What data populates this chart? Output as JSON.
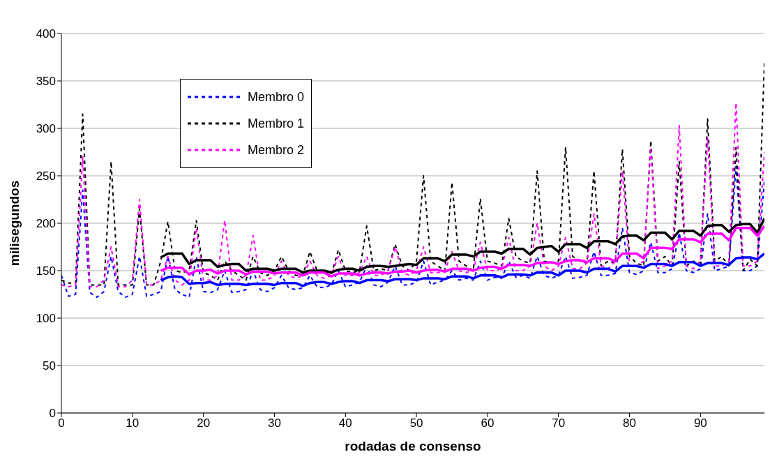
{
  "chart_data": {
    "type": "line",
    "xlabel": "rodadas de consenso",
    "ylabel": "milisegundos",
    "x": [
      0,
      1,
      2,
      3,
      4,
      5,
      6,
      7,
      8,
      9,
      10,
      11,
      12,
      13,
      14,
      15,
      16,
      17,
      18,
      19,
      20,
      21,
      22,
      23,
      24,
      25,
      26,
      27,
      28,
      29,
      30,
      31,
      32,
      33,
      34,
      35,
      36,
      37,
      38,
      39,
      40,
      41,
      42,
      43,
      44,
      45,
      46,
      47,
      48,
      49,
      50,
      51,
      52,
      53,
      54,
      55,
      56,
      57,
      58,
      59,
      60,
      61,
      62,
      63,
      64,
      65,
      66,
      67,
      68,
      69,
      70,
      71,
      72,
      73,
      74,
      75,
      76,
      77,
      78,
      79,
      80,
      81,
      82,
      83,
      84,
      85,
      86,
      87,
      88,
      89,
      90,
      91,
      92,
      93,
      94,
      95,
      96,
      97,
      98,
      99
    ],
    "xlim": [
      0,
      99
    ],
    "xticks": [
      0,
      10,
      20,
      30,
      40,
      50,
      60,
      70,
      80,
      90
    ],
    "ylim": [
      0,
      400
    ],
    "yticks": [
      0,
      50,
      100,
      150,
      200,
      250,
      300,
      350,
      400
    ],
    "grid": "y",
    "legend": "top left",
    "series": [
      {
        "name": "Membro 0",
        "color": "#0000ff",
        "line_style": "dashed",
        "values": [
          145,
          123,
          125,
          235,
          127,
          122,
          128,
          165,
          128,
          122,
          125,
          165,
          123,
          125,
          128,
          165,
          130,
          125,
          122,
          165,
          128,
          127,
          130,
          150,
          127,
          128,
          130,
          150,
          130,
          128,
          132,
          145,
          132,
          130,
          132,
          145,
          133,
          132,
          135,
          150,
          133,
          135,
          138,
          155,
          135,
          133,
          138,
          155,
          135,
          135,
          138,
          160,
          135,
          138,
          140,
          150,
          140,
          142,
          140,
          160,
          140,
          143,
          142,
          160,
          143,
          145,
          142,
          165,
          145,
          142,
          145,
          165,
          142,
          143,
          145,
          170,
          145,
          145,
          147,
          195,
          148,
          146,
          150,
          180,
          148,
          148,
          152,
          190,
          150,
          148,
          152,
          210,
          150,
          152,
          155,
          260,
          150,
          150,
          155,
          245
        ]
      },
      {
        "name": "Membro 1",
        "color": "#000000",
        "line_style": "dashed",
        "values": [
          140,
          137,
          137,
          315,
          135,
          135,
          135,
          265,
          135,
          135,
          135,
          215,
          135,
          135,
          160,
          202,
          150,
          148,
          150,
          203,
          148,
          145,
          140,
          160,
          150,
          145,
          140,
          165,
          148,
          145,
          150,
          165,
          150,
          145,
          145,
          170,
          150,
          148,
          145,
          172,
          150,
          148,
          150,
          197,
          150,
          152,
          150,
          178,
          155,
          150,
          160,
          250,
          160,
          155,
          150,
          243,
          160,
          155,
          150,
          226,
          160,
          158,
          155,
          205,
          165,
          160,
          158,
          255,
          160,
          158,
          160,
          280,
          165,
          160,
          158,
          255,
          155,
          160,
          158,
          278,
          165,
          158,
          155,
          287,
          160,
          165,
          155,
          265,
          155,
          160,
          158,
          310,
          160,
          165,
          155,
          280,
          150,
          162,
          155,
          370
        ]
      },
      {
        "name": "Membro 2",
        "color": "#ff00ff",
        "line_style": "dashed",
        "values": [
          135,
          133,
          135,
          270,
          133,
          133,
          140,
          175,
          133,
          133,
          140,
          225,
          135,
          135,
          140,
          165,
          140,
          135,
          140,
          195,
          140,
          140,
          145,
          203,
          140,
          140,
          145,
          187,
          140,
          140,
          145,
          160,
          145,
          142,
          145,
          160,
          145,
          142,
          145,
          165,
          145,
          145,
          148,
          165,
          145,
          145,
          150,
          175,
          148,
          145,
          150,
          175,
          148,
          148,
          150,
          170,
          150,
          148,
          150,
          180,
          150,
          150,
          152,
          185,
          150,
          150,
          155,
          200,
          155,
          150,
          155,
          185,
          152,
          152,
          158,
          210,
          155,
          152,
          160,
          255,
          155,
          155,
          160,
          280,
          152,
          155,
          160,
          303,
          155,
          152,
          160,
          290,
          155,
          155,
          160,
          327,
          155,
          155,
          160,
          275
        ]
      },
      {
        "color": "#0000ff",
        "line_style": "solid",
        "values": [
          null,
          null,
          null,
          null,
          null,
          null,
          null,
          null,
          null,
          null,
          null,
          null,
          null,
          null,
          140,
          143,
          144,
          143,
          136,
          137,
          137,
          138,
          135,
          136,
          136,
          136,
          135,
          136,
          136,
          136,
          135,
          137,
          137,
          137,
          134,
          137,
          138,
          138,
          136,
          138,
          139,
          139,
          137,
          140,
          140,
          140,
          139,
          141,
          141,
          141,
          140,
          142,
          142,
          142,
          141,
          144,
          144,
          144,
          142,
          145,
          145,
          145,
          143,
          146,
          146,
          146,
          145,
          148,
          148,
          148,
          145,
          150,
          150,
          150,
          148,
          152,
          152,
          152,
          149,
          155,
          155,
          155,
          153,
          157,
          157,
          157,
          155,
          159,
          159,
          159,
          155,
          158,
          158,
          158,
          156,
          163,
          164,
          164,
          162,
          168
        ]
      },
      {
        "color": "#000000",
        "line_style": "solid",
        "values": [
          null,
          null,
          null,
          null,
          null,
          null,
          null,
          null,
          null,
          null,
          null,
          null,
          null,
          null,
          164,
          168,
          168,
          168,
          157,
          161,
          161,
          161,
          154,
          156,
          157,
          157,
          150,
          152,
          152,
          152,
          150,
          152,
          152,
          152,
          148,
          150,
          150,
          150,
          148,
          151,
          152,
          152,
          150,
          154,
          155,
          155,
          154,
          155,
          156,
          157,
          156,
          163,
          163,
          163,
          160,
          167,
          167,
          167,
          165,
          170,
          170,
          170,
          168,
          173,
          173,
          173,
          167,
          174,
          175,
          176,
          170,
          178,
          178,
          178,
          174,
          181,
          181,
          181,
          178,
          186,
          187,
          187,
          182,
          190,
          190,
          190,
          183,
          192,
          192,
          192,
          187,
          197,
          198,
          198,
          191,
          198,
          199,
          199,
          190,
          205
        ]
      },
      {
        "color": "#ff00ff",
        "line_style": "solid",
        "values": [
          null,
          null,
          null,
          null,
          null,
          null,
          null,
          null,
          null,
          null,
          null,
          null,
          null,
          null,
          150,
          153,
          153,
          153,
          146,
          150,
          150,
          151,
          147,
          150,
          150,
          150,
          146,
          149,
          149,
          149,
          147,
          148,
          148,
          148,
          145,
          148,
          148,
          148,
          144,
          147,
          147,
          147,
          145,
          147,
          148,
          148,
          147,
          149,
          149,
          150,
          148,
          150,
          151,
          151,
          149,
          152,
          152,
          152,
          150,
          153,
          154,
          154,
          152,
          156,
          156,
          156,
          155,
          158,
          158,
          159,
          157,
          160,
          161,
          161,
          159,
          163,
          163,
          163,
          160,
          168,
          168,
          168,
          163,
          174,
          174,
          174,
          173,
          183,
          183,
          183,
          180,
          189,
          189,
          189,
          182,
          195,
          195,
          195,
          187,
          197
        ]
      }
    ]
  }
}
